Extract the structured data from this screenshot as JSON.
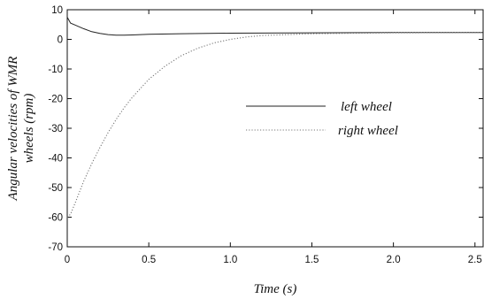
{
  "chart_data": {
    "type": "line",
    "xlabel": "Time (s)",
    "ylabel_lines": [
      "Angular velocities of WMR",
      "wheels (rpm)"
    ],
    "xlim": [
      0,
      2.55
    ],
    "ylim": [
      -70,
      10
    ],
    "xticks": [
      0,
      0.5,
      1.0,
      1.5,
      2.0,
      2.5
    ],
    "xtick_labels": [
      "0",
      "0.5",
      "1.0",
      "1.5",
      "2.0",
      "2.5"
    ],
    "yticks": [
      10,
      0,
      -10,
      -20,
      -30,
      -40,
      -50,
      -60,
      -70
    ],
    "ytick_labels": [
      "10",
      "0",
      "-10",
      "-20",
      "-30",
      "-40",
      "-50",
      "-60",
      "-70"
    ],
    "grid": false,
    "legend_position": "center-right",
    "series": [
      {
        "name": "left wheel",
        "style": "solid",
        "color": "#222222",
        "x": [
          0,
          0.02,
          0.05,
          0.1,
          0.15,
          0.2,
          0.25,
          0.3,
          0.35,
          0.4,
          0.5,
          0.7,
          1.0,
          1.5,
          2.0,
          2.55
        ],
        "y": [
          7.5,
          5.5,
          4.8,
          3.6,
          2.6,
          2.0,
          1.6,
          1.4,
          1.4,
          1.5,
          1.7,
          1.9,
          2.1,
          2.2,
          2.3,
          2.3
        ]
      },
      {
        "name": "right wheel",
        "style": "dotted",
        "color": "#777777",
        "x": [
          0,
          0.02,
          0.05,
          0.1,
          0.15,
          0.2,
          0.25,
          0.3,
          0.35,
          0.4,
          0.5,
          0.6,
          0.7,
          0.8,
          0.9,
          1.0,
          1.1,
          1.2,
          1.5,
          2.0,
          2.55
        ],
        "y": [
          -60,
          -59,
          -55,
          -48,
          -42,
          -36.5,
          -31.5,
          -27,
          -23,
          -19.5,
          -13.5,
          -9,
          -5.5,
          -3,
          -1.2,
          0,
          0.8,
          1.3,
          1.9,
          2.2,
          2.3
        ]
      }
    ]
  }
}
